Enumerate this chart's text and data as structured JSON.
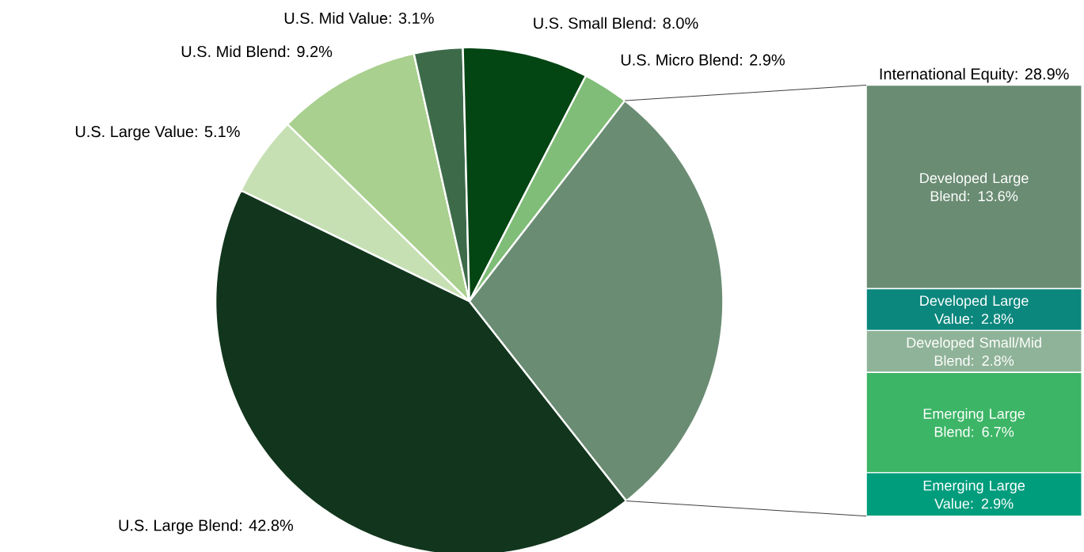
{
  "chart_data": [
    {
      "type": "pie",
      "categories": [
        "U.S. Large Value: 5.1%",
        "U.S. Mid Blend: 9.2%",
        "U.S. Mid Value: 3.1%",
        "U.S. Small Blend: 8.0%",
        "U.S. Micro Blend: 2.9%",
        "International Equity: 28.9%",
        "U.S. Large Blend: 42.8%"
      ],
      "values": [
        5.1,
        9.2,
        3.1,
        8.0,
        2.9,
        28.9,
        42.8
      ],
      "colors": [
        "#c6e0b4",
        "#a9d08e",
        "#3d6b4a",
        "#034513",
        "#80bd78",
        "#6a8c73",
        "#12361d"
      ]
    },
    {
      "type": "bar",
      "stacked": true,
      "categories": [
        null
      ],
      "series": [
        {
          "color": "#009d7c",
          "values": [
            2.9
          ],
          "value_labels": [
            "Emerging Large Value: 2.9%"
          ]
        },
        {
          "color": "#3cb566",
          "values": [
            6.7
          ],
          "value_labels": [
            "Emerging Large Blend: 6.7%"
          ]
        },
        {
          "color": "#8fb398",
          "values": [
            2.8
          ],
          "value_labels": [
            "Developed Small/Mid Blend: 2.8%"
          ]
        },
        {
          "color": "#0b877d",
          "values": [
            2.8
          ],
          "value_labels": [
            "Developed Large Value: 2.8%"
          ]
        },
        {
          "color": "#6a8c73",
          "values": [
            13.6
          ],
          "value_labels": [
            "Developed Large Blend: 13.6%"
          ]
        }
      ]
    }
  ]
}
